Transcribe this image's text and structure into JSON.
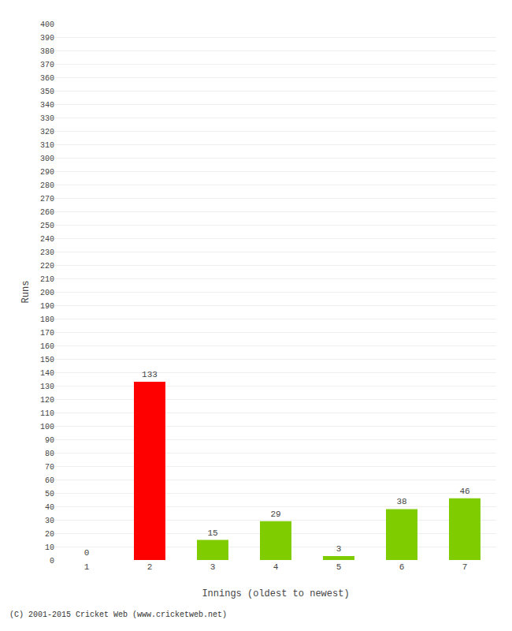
{
  "chart_data": {
    "type": "bar",
    "categories": [
      "1",
      "2",
      "3",
      "4",
      "5",
      "6",
      "7"
    ],
    "values": [
      0,
      133,
      15,
      29,
      3,
      38,
      46
    ],
    "colors": [
      "#7FCC00",
      "#FF0000",
      "#7FCC00",
      "#7FCC00",
      "#7FCC00",
      "#7FCC00",
      "#7FCC00"
    ],
    "xlabel": "Innings (oldest to newest)",
    "ylabel": "Runs",
    "ylim": [
      0,
      400
    ],
    "yticks": [
      0,
      10,
      20,
      30,
      40,
      50,
      60,
      70,
      80,
      90,
      100,
      110,
      120,
      130,
      140,
      150,
      160,
      170,
      180,
      190,
      200,
      210,
      220,
      230,
      240,
      250,
      260,
      270,
      280,
      290,
      300,
      310,
      320,
      330,
      340,
      350,
      360,
      370,
      380,
      390,
      400
    ],
    "grid": true,
    "data_labels": true,
    "annotations": [
      "(C) 2001-2015 Cricket Web (www.cricketweb.net)"
    ]
  }
}
